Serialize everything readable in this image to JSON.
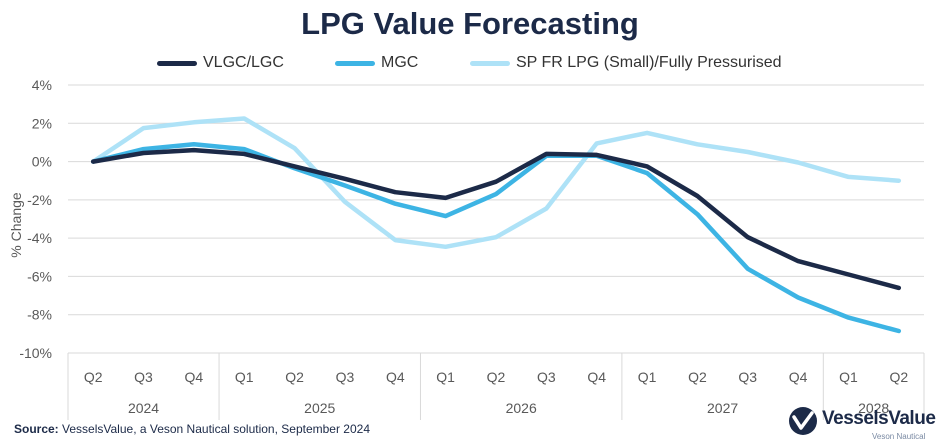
{
  "colors": {
    "title": "#1c2a48",
    "VLGC/LGC": "#1c2a48",
    "MGC": "#3db4e4",
    "SP FR LPG (Small)/Fully Pressurised": "#aee2f7",
    "grid": "#d9d9d9",
    "axis_text": "#595959"
  },
  "chart_data": {
    "type": "line",
    "title": "LPG Value Forecasting",
    "ylabel": "% Change",
    "xlabel": "",
    "ylim": [
      -10,
      4
    ],
    "ytick_step": 2,
    "yticks": [
      "4%",
      "2%",
      "0%",
      "-2%",
      "-4%",
      "-6%",
      "-8%",
      "-10%"
    ],
    "grid": "horizontal",
    "legend_position": "top",
    "categories": [
      "Q2",
      "Q3",
      "Q4",
      "Q1",
      "Q2",
      "Q3",
      "Q4",
      "Q1",
      "Q2",
      "Q3",
      "Q4",
      "Q1",
      "Q2",
      "Q3",
      "Q4",
      "Q1",
      "Q2"
    ],
    "year_groups": [
      {
        "label": "2024",
        "count": 3
      },
      {
        "label": "2025",
        "count": 4
      },
      {
        "label": "2026",
        "count": 4
      },
      {
        "label": "2027",
        "count": 4
      },
      {
        "label": "2028",
        "count": 2
      }
    ],
    "series": [
      {
        "name": "VLGC/LGC",
        "values": [
          0.0,
          0.45,
          0.6,
          0.4,
          -0.25,
          -0.9,
          -1.6,
          -1.9,
          -1.05,
          0.4,
          0.35,
          -0.25,
          -1.8,
          -3.95,
          -5.2,
          -5.9,
          -6.6
        ]
      },
      {
        "name": "MGC",
        "values": [
          0.0,
          0.65,
          0.9,
          0.65,
          -0.35,
          -1.25,
          -2.2,
          -2.85,
          -1.7,
          0.3,
          0.3,
          -0.6,
          -2.75,
          -5.6,
          -7.1,
          -8.15,
          -8.85
        ]
      },
      {
        "name": "SP FR LPG (Small)/Fully Pressurised",
        "values": [
          0.0,
          1.75,
          2.05,
          2.25,
          0.7,
          -2.1,
          -4.1,
          -4.45,
          -3.95,
          -2.45,
          0.95,
          1.5,
          0.9,
          0.5,
          -0.05,
          -0.8,
          -1.0
        ]
      }
    ]
  },
  "footer": {
    "source_label": "Source:",
    "source_text": "VesselsValue, a Veson Nautical solution, September 2024",
    "logo_text": "VesselsValue",
    "logo_subtext": "Veson Nautical"
  }
}
